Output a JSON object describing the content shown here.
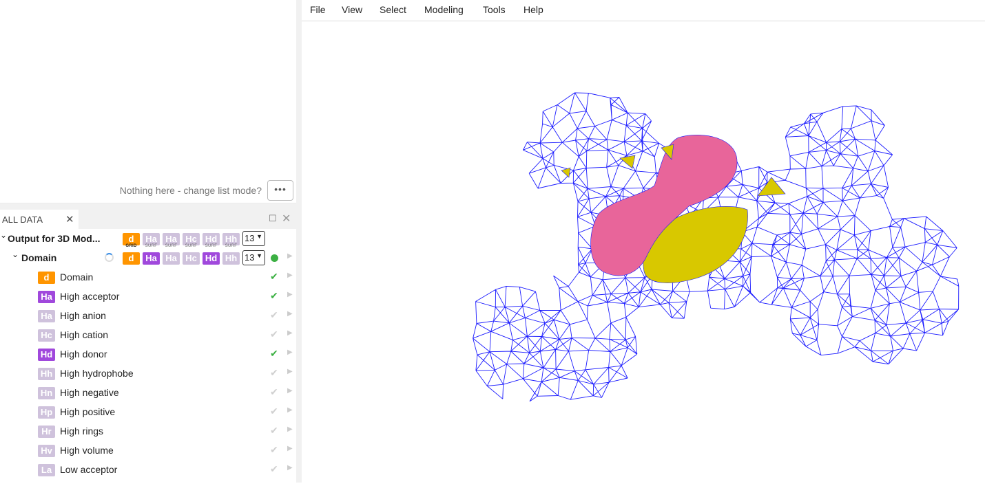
{
  "menu": [
    "File",
    "View",
    "Select",
    "Modeling",
    "Tools",
    "Help"
  ],
  "list_panel": {
    "empty_message": "Nothing here - change list mode?",
    "more_label": "•••"
  },
  "data_panel": {
    "tab_label": "ALL DATA",
    "root": {
      "label": "Output for 3D Mod...",
      "badges": [
        {
          "code": "d",
          "sub": "GRID",
          "state": "orange"
        },
        {
          "code": "Ha",
          "sub": "SURF",
          "state": "off"
        },
        {
          "code": "Ha",
          "sub": "SURF",
          "state": "off"
        },
        {
          "code": "Hc",
          "sub": "SURF",
          "state": "off"
        },
        {
          "code": "Hd",
          "sub": "SURF",
          "state": "off"
        },
        {
          "code": "Hh",
          "sub": "SURF",
          "state": "off"
        }
      ],
      "level": "13"
    },
    "domain": {
      "label": "Domain",
      "badges": [
        {
          "code": "d",
          "state": "orange"
        },
        {
          "code": "Ha",
          "state": "on"
        },
        {
          "code": "Ha",
          "state": "off"
        },
        {
          "code": "Hc",
          "state": "off"
        },
        {
          "code": "Hd",
          "state": "on"
        },
        {
          "code": "Hh",
          "state": "off"
        }
      ],
      "level": "13",
      "status": "green-dot"
    },
    "items": [
      {
        "code": "d",
        "label": "Domain",
        "state": "orange",
        "visible": true
      },
      {
        "code": "Ha",
        "label": "High acceptor",
        "state": "on",
        "visible": true
      },
      {
        "code": "Ha",
        "label": "High anion",
        "state": "off",
        "visible": false
      },
      {
        "code": "Hc",
        "label": "High cation",
        "state": "off",
        "visible": false
      },
      {
        "code": "Hd",
        "label": "High donor",
        "state": "on",
        "visible": true
      },
      {
        "code": "Hh",
        "label": "High hydrophobe",
        "state": "off",
        "visible": false
      },
      {
        "code": "Hn",
        "label": "High negative",
        "state": "off",
        "visible": false
      },
      {
        "code": "Hp",
        "label": "High positive",
        "state": "off",
        "visible": false
      },
      {
        "code": "Hr",
        "label": "High rings",
        "state": "off",
        "visible": false
      },
      {
        "code": "Hv",
        "label": "High volume",
        "state": "off",
        "visible": false
      },
      {
        "code": "La",
        "label": "Low acceptor",
        "state": "off",
        "visible": false
      }
    ]
  },
  "colors": {
    "orange": "#ff9500",
    "on": "#a048dc",
    "off": "#cfc2dc",
    "check_on": "#3cb043",
    "check_off": "#d0d0d0",
    "mesh": "#1a1aff",
    "pink": "#e8659a",
    "yellow": "#d8c800"
  }
}
